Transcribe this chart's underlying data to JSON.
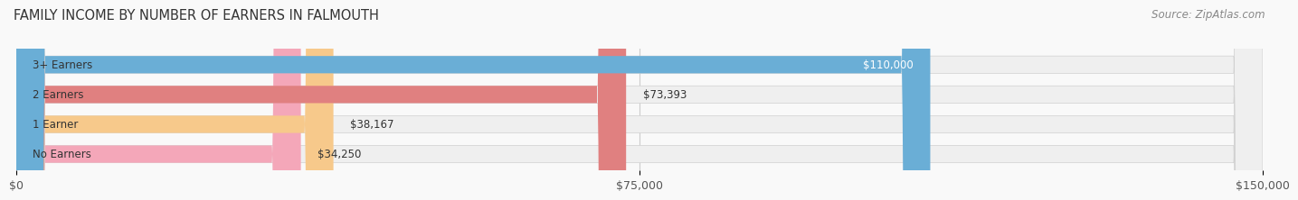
{
  "title": "FAMILY INCOME BY NUMBER OF EARNERS IN FALMOUTH",
  "source": "Source: ZipAtlas.com",
  "categories": [
    "No Earners",
    "1 Earner",
    "2 Earners",
    "3+ Earners"
  ],
  "values": [
    34250,
    38167,
    73393,
    110000
  ],
  "bar_colors": [
    "#f4a7b9",
    "#f7c98b",
    "#e08080",
    "#6aaed6"
  ],
  "bar_bg_color": "#efefef",
  "label_colors": [
    "#555555",
    "#555555",
    "#555555",
    "#ffffff"
  ],
  "xlim": [
    0,
    150000
  ],
  "xtick_values": [
    0,
    75000,
    150000
  ],
  "xtick_labels": [
    "$0",
    "$75,000",
    "$150,000"
  ],
  "value_labels": [
    "$34,250",
    "$38,167",
    "$73,393",
    "$110,000"
  ],
  "background_color": "#f9f9f9",
  "bar_height": 0.58,
  "title_fontsize": 10.5,
  "source_fontsize": 8.5,
  "tick_fontsize": 9,
  "label_fontsize": 8.5,
  "value_fontsize": 8.5
}
